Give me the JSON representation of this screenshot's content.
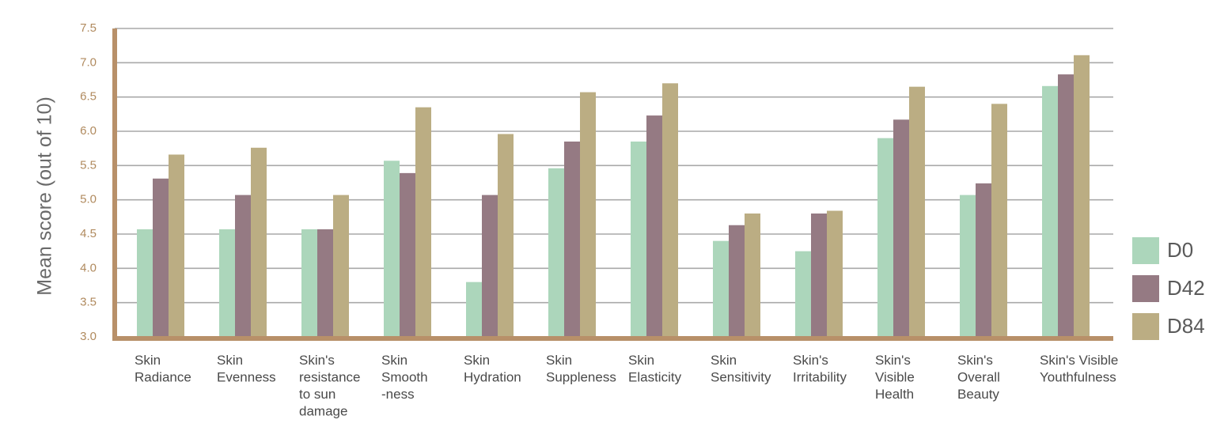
{
  "chart_data": {
    "type": "bar",
    "title": "",
    "xlabel": "",
    "ylabel": "Mean score (out of 10)",
    "ylim": [
      3.0,
      7.5
    ],
    "yticks": [
      "3.0",
      "3.5",
      "4.0",
      "4.5",
      "5.0",
      "5.5",
      "6.0",
      "6.5",
      "7.0",
      "7.5"
    ],
    "grid": "horizontal",
    "legend_position": "right",
    "categories": [
      [
        "Skin",
        "Radiance"
      ],
      [
        "Skin",
        "Evenness"
      ],
      [
        "Skin's",
        "resistance",
        "to sun",
        "damage"
      ],
      [
        "Skin",
        "Smooth",
        "-ness"
      ],
      [
        "Skin",
        "Hydration"
      ],
      [
        "Skin",
        "Suppleness"
      ],
      [
        "Skin",
        "Elasticity"
      ],
      [
        "Skin",
        "Sensitivity"
      ],
      [
        "Skin's",
        "Irritability"
      ],
      [
        "Skin's",
        "Visible",
        "Health"
      ],
      [
        "Skin's",
        "Overall",
        "Beauty"
      ],
      [
        "Skin's Visible",
        "Youthfulness"
      ]
    ],
    "series": [
      {
        "name": "D0",
        "color": "#acd6bb",
        "values": [
          4.57,
          4.57,
          4.57,
          5.57,
          3.8,
          5.46,
          5.85,
          4.4,
          4.25,
          5.9,
          5.07,
          6.66
        ]
      },
      {
        "name": "D42",
        "color": "#957a83",
        "values": [
          5.31,
          5.07,
          4.57,
          5.39,
          5.07,
          5.85,
          6.23,
          4.63,
          4.8,
          6.17,
          5.24,
          6.83
        ]
      },
      {
        "name": "D84",
        "color": "#bbad83",
        "values": [
          5.66,
          5.76,
          5.07,
          6.35,
          5.96,
          6.57,
          6.7,
          4.8,
          4.84,
          6.65,
          6.4,
          7.11
        ]
      }
    ]
  }
}
